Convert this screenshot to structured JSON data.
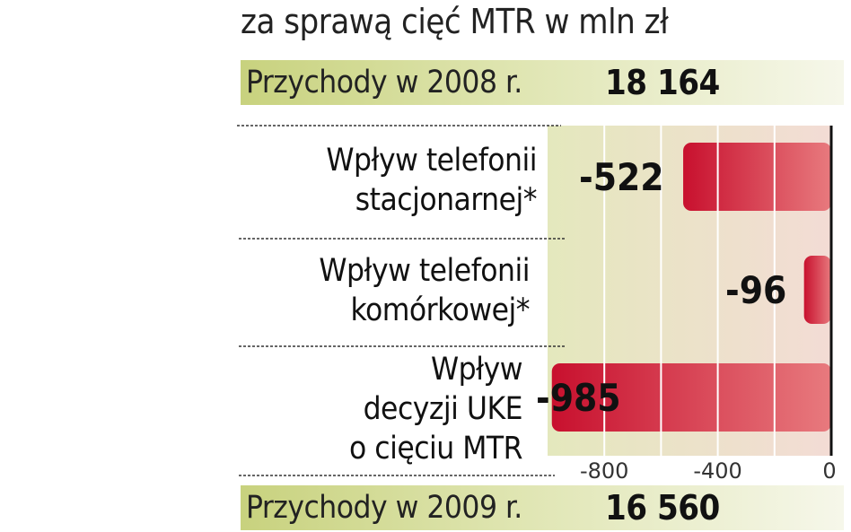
{
  "subtitle": "za sprawą cięć MTR w mln zł",
  "revenue_2008": {
    "label": "Przychody w 2008 r.",
    "value": "18 164"
  },
  "revenue_2009": {
    "label": "Przychody w 2009 r.",
    "value": "16 560"
  },
  "colors": {
    "bar_dark": "#c8102e",
    "bar_light": "#e87a7e",
    "plot_bg_left": "#e4e8bd",
    "plot_bg_right": "#f3dcd5",
    "band_left": "#c8d27e"
  },
  "chart_data": {
    "type": "bar",
    "orientation": "horizontal",
    "categories": [
      [
        "Wpływ telefonii",
        "stacjonarnej*"
      ],
      [
        "Wpływ telefonii",
        "komórkowej*"
      ],
      [
        "Wpływ",
        "decyzji UKE",
        "o cięciu MTR"
      ]
    ],
    "values": [
      -522,
      -96,
      -985
    ],
    "value_labels": [
      "-522",
      "-96",
      "-985"
    ],
    "xlim": [
      -1000,
      0
    ],
    "xticks": [
      -800,
      -400,
      0
    ],
    "xtick_labels": [
      "-800",
      "-400",
      "0"
    ],
    "grid": true
  }
}
